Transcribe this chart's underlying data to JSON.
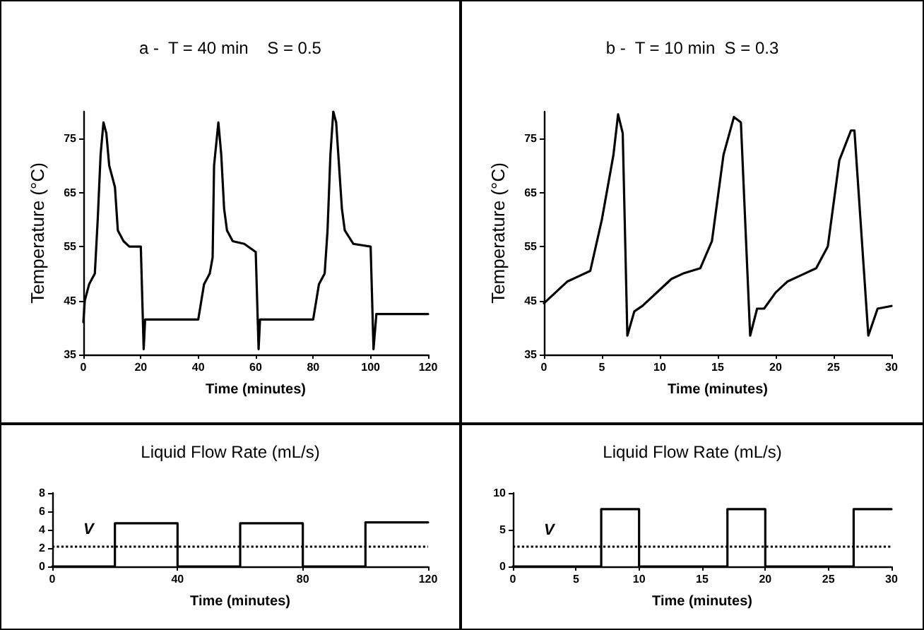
{
  "chart_data": [
    {
      "type": "line",
      "title": "a -  T = 40 min    S = 0.5",
      "xlabel": "Time (minutes)",
      "ylabel": "Temperature (°C)",
      "xlim": [
        0,
        120
      ],
      "xticks": [
        0,
        20,
        40,
        60,
        80,
        100,
        120
      ],
      "ylim": [
        35,
        80
      ],
      "yticks": [
        35,
        45,
        55,
        65,
        75
      ],
      "grid": false,
      "marker": "none",
      "line_style": "solid",
      "series": [
        {
          "color": "#000000",
          "x": [
            0,
            0.5,
            2,
            4,
            5,
            6,
            7,
            8,
            9,
            11,
            12,
            14,
            16,
            20,
            21,
            21.5,
            40,
            42,
            44,
            45,
            45.5,
            47,
            48,
            49,
            50,
            52,
            56,
            60,
            61,
            61.5,
            80,
            82,
            84,
            85,
            86,
            87,
            88,
            89,
            90,
            91,
            94,
            100,
            101,
            102,
            120
          ],
          "values": [
            41,
            45,
            48,
            50,
            60,
            72,
            78,
            76,
            70,
            66,
            58,
            56,
            55,
            55,
            36,
            41.5,
            41.5,
            48,
            50,
            53,
            70,
            78,
            72,
            62,
            58,
            56,
            55.5,
            54,
            36,
            41.5,
            41.5,
            48,
            50,
            58,
            72,
            80,
            78,
            70,
            62,
            58,
            55.5,
            55,
            36,
            42.5,
            42.5
          ]
        }
      ]
    },
    {
      "type": "line",
      "title": "b -  T = 10 min  S = 0.3",
      "xlabel": "Time (minutes)",
      "ylabel": "Temperature (°C)",
      "xlim": [
        0,
        30
      ],
      "xticks": [
        0,
        5,
        10,
        15,
        20,
        25,
        30
      ],
      "ylim": [
        35,
        80
      ],
      "yticks": [
        35,
        45,
        55,
        65,
        75
      ],
      "grid": false,
      "marker": "none",
      "line_style": "solid",
      "series": [
        {
          "color": "#000000",
          "x": [
            0,
            1,
            2,
            3,
            4,
            5,
            6,
            6.4,
            6.8,
            7.2,
            7.8,
            8.5,
            10,
            11,
            12,
            13.5,
            14.5,
            15.5,
            16.4,
            17,
            17.8,
            18.4,
            19,
            20,
            21,
            22.5,
            23.5,
            24.5,
            25.5,
            26.5,
            26.8,
            28,
            28.8,
            30
          ],
          "values": [
            44.5,
            46.5,
            48.5,
            49.5,
            50.5,
            60,
            72,
            79.5,
            76,
            38.5,
            43,
            44,
            47,
            49,
            50,
            51,
            56,
            72,
            79,
            78,
            38.5,
            43.5,
            43.5,
            46.5,
            48.5,
            50,
            51,
            55,
            71,
            76.5,
            76.5,
            38.5,
            43.5,
            44
          ]
        }
      ]
    },
    {
      "type": "step",
      "title": "Liquid Flow Rate (mL/s)",
      "xlabel": "Time (minutes)",
      "xlim": [
        0,
        120
      ],
      "xticks": [
        0,
        40,
        80,
        120
      ],
      "ylim": [
        0,
        8
      ],
      "yticks": [
        0,
        2,
        4,
        6,
        8
      ],
      "grid": false,
      "marker": "none",
      "line_style": "solid",
      "ref_lines": [
        {
          "axis": "y",
          "value": 2.2,
          "label": "V",
          "line_style": "dotted",
          "color": "#000000"
        }
      ],
      "series": [
        {
          "color": "#000000",
          "x": [
            0,
            20,
            40,
            60,
            80,
            100,
            120
          ],
          "values": [
            0,
            4.7,
            0,
            4.7,
            0,
            4.8,
            4.8
          ]
        }
      ]
    },
    {
      "type": "step",
      "title": "Liquid Flow Rate (mL/s)",
      "xlabel": "Time (minutes)",
      "xlim": [
        0,
        30
      ],
      "xticks": [
        0,
        5,
        10,
        15,
        20,
        25,
        30
      ],
      "ylim": [
        0,
        10
      ],
      "yticks": [
        0,
        5,
        10
      ],
      "grid": false,
      "marker": "none",
      "line_style": "solid",
      "ref_lines": [
        {
          "axis": "y",
          "value": 2.7,
          "label": "V",
          "line_style": "dotted",
          "color": "#000000"
        }
      ],
      "series": [
        {
          "color": "#000000",
          "x": [
            0,
            7,
            10,
            17,
            20,
            27,
            30
          ],
          "values": [
            0,
            7.8,
            0,
            7.8,
            0,
            7.8,
            7.8
          ]
        }
      ]
    }
  ]
}
